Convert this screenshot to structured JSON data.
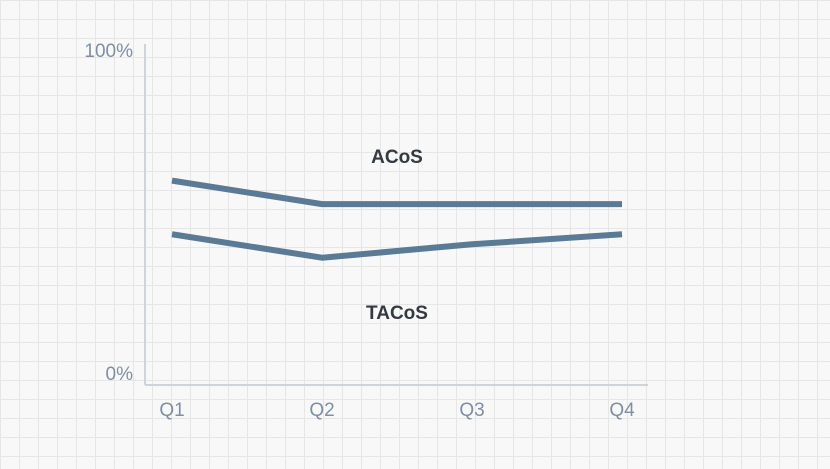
{
  "chart_data": {
    "type": "line",
    "categories": [
      "Q1",
      "Q2",
      "Q3",
      "Q4"
    ],
    "y_tick_labels": [
      "100%",
      "0%"
    ],
    "ylim": [
      0,
      100
    ],
    "grid": true,
    "title": "",
    "xlabel": "",
    "ylabel": "",
    "series": [
      {
        "name": "ACoS",
        "values": [
          61,
          54,
          54,
          54
        ],
        "color": "#5b7a96"
      },
      {
        "name": "TACoS",
        "values": [
          45,
          38,
          42,
          45
        ],
        "color": "#5b7a96"
      }
    ]
  },
  "colors": {
    "line": "#5b7a96",
    "axis": "#d0d4d9",
    "tick_text": "#7f8fa3",
    "label_text": "#343a40"
  }
}
